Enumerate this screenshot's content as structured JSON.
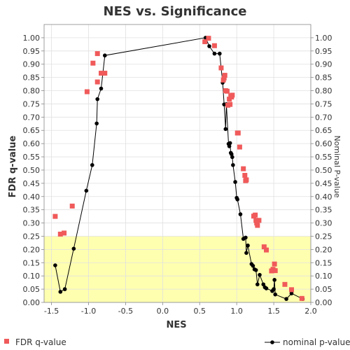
{
  "chart_data": {
    "type": "scatter",
    "title": "NES vs. Significance",
    "xlabel": "NES",
    "ylabel": "FDR q-value",
    "y2label": "Nominal P-value",
    "xlim": [
      -1.6,
      2.0
    ],
    "ylim": [
      0.0,
      1.05
    ],
    "y2lim": [
      0.0,
      1.05
    ],
    "x_ticks": [
      "-1.5",
      "-1.0",
      "-0.5",
      "0.0",
      "0.5",
      "1.0",
      "1.5",
      "2.0"
    ],
    "y_ticks": [
      "0.00",
      "0.05",
      "0.10",
      "0.15",
      "0.20",
      "0.25",
      "0.30",
      "0.35",
      "0.40",
      "0.45",
      "0.50",
      "0.55",
      "0.60",
      "0.65",
      "0.70",
      "0.75",
      "0.80",
      "0.85",
      "0.90",
      "0.95",
      "1.00"
    ],
    "highlight_band": {
      "from": 0.0,
      "to": 0.25,
      "color": "#ffffb0"
    },
    "grid": true,
    "colors": {
      "fdr": "#f05a5a",
      "nominal": "#000000",
      "grid": "#e0e0e0"
    },
    "series": [
      {
        "name": "FDR q-value",
        "style": "square-markers",
        "points": [
          [
            -1.45,
            0.325
          ],
          [
            -1.38,
            0.258
          ],
          [
            -1.33,
            0.262
          ],
          [
            -1.22,
            0.364
          ],
          [
            -1.02,
            0.796
          ],
          [
            -0.94,
            0.904
          ],
          [
            -0.88,
            0.833
          ],
          [
            -0.88,
            0.94
          ],
          [
            -0.83,
            0.866
          ],
          [
            -0.78,
            0.866
          ],
          [
            0.57,
            0.985
          ],
          [
            0.62,
            0.998
          ],
          [
            0.7,
            0.97
          ],
          [
            0.79,
            0.886
          ],
          [
            0.82,
            0.84
          ],
          [
            0.83,
            0.848
          ],
          [
            0.84,
            0.858
          ],
          [
            0.85,
            0.8
          ],
          [
            0.87,
            0.798
          ],
          [
            0.88,
            0.745
          ],
          [
            0.9,
            0.768
          ],
          [
            0.91,
            0.748
          ],
          [
            0.92,
            0.78
          ],
          [
            0.93,
            0.776
          ],
          [
            0.94,
            0.783
          ],
          [
            1.01,
            0.64
          ],
          [
            1.02,
            0.64
          ],
          [
            1.04,
            0.587
          ],
          [
            1.09,
            0.505
          ],
          [
            1.11,
            0.48
          ],
          [
            1.12,
            0.46
          ],
          [
            1.13,
            0.463
          ],
          [
            1.23,
            0.326
          ],
          [
            1.25,
            0.33
          ],
          [
            1.26,
            0.31
          ],
          [
            1.27,
            0.3
          ],
          [
            1.28,
            0.291
          ],
          [
            1.3,
            0.31
          ],
          [
            1.37,
            0.21
          ],
          [
            1.4,
            0.198
          ],
          [
            1.47,
            0.119
          ],
          [
            1.49,
            0.125
          ],
          [
            1.51,
            0.145
          ],
          [
            1.52,
            0.12
          ],
          [
            1.65,
            0.068
          ],
          [
            1.74,
            0.048
          ],
          [
            1.88,
            0.015
          ]
        ]
      },
      {
        "name": "nominal p-value",
        "style": "line-with-markers",
        "points": [
          [
            -1.45,
            0.14
          ],
          [
            -1.38,
            0.04
          ],
          [
            -1.32,
            0.05
          ],
          [
            -1.2,
            0.203
          ],
          [
            -1.03,
            0.422
          ],
          [
            -0.95,
            0.519
          ],
          [
            -0.89,
            0.676
          ],
          [
            -0.88,
            0.768
          ],
          [
            -0.83,
            0.808
          ],
          [
            -0.78,
            0.933
          ],
          [
            0.58,
            1.0
          ],
          [
            0.63,
            0.968
          ],
          [
            0.7,
            0.94
          ],
          [
            0.77,
            0.94
          ],
          [
            0.81,
            0.83
          ],
          [
            0.83,
            0.748
          ],
          [
            0.85,
            0.655
          ],
          [
            0.86,
            0.749
          ],
          [
            0.89,
            0.599
          ],
          [
            0.9,
            0.59
          ],
          [
            0.91,
            0.602
          ],
          [
            0.92,
            0.565
          ],
          [
            0.93,
            0.56
          ],
          [
            0.94,
            0.549
          ],
          [
            0.95,
            0.519
          ],
          [
            0.98,
            0.455
          ],
          [
            1.0,
            0.395
          ],
          [
            1.01,
            0.389
          ],
          [
            1.05,
            0.333
          ],
          [
            1.09,
            0.24
          ],
          [
            1.12,
            0.245
          ],
          [
            1.13,
            0.187
          ],
          [
            1.15,
            0.215
          ],
          [
            1.2,
            0.145
          ],
          [
            1.22,
            0.138
          ],
          [
            1.24,
            0.125
          ],
          [
            1.26,
            0.122
          ],
          [
            1.28,
            0.068
          ],
          [
            1.31,
            0.104
          ],
          [
            1.36,
            0.068
          ],
          [
            1.38,
            0.057
          ],
          [
            1.4,
            0.053
          ],
          [
            1.48,
            0.043
          ],
          [
            1.5,
            0.05
          ],
          [
            1.51,
            0.085
          ],
          [
            1.52,
            0.03
          ],
          [
            1.67,
            0.013
          ],
          [
            1.74,
            0.034
          ],
          [
            1.89,
            0.013
          ]
        ]
      }
    ]
  }
}
